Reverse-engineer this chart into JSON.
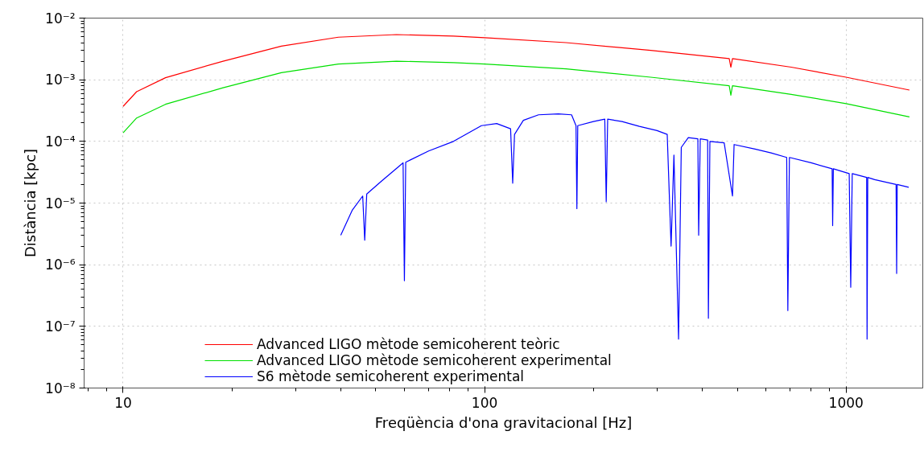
{
  "chart_data": {
    "type": "line",
    "xlabel": "Freqüència d'ona gravitacional [Hz]",
    "ylabel": "Distància [kpc]",
    "log": "xy",
    "grid": true,
    "legend": "bottom",
    "marker": "none",
    "line_style": "solid",
    "xlim": [
      7.8,
      1630
    ],
    "xticks": [
      10,
      100,
      1000
    ],
    "ylim": [
      1e-08,
      0.01
    ],
    "yticks": [
      {
        "value": 1e-08,
        "label": "10⁻⁸"
      },
      {
        "value": 1e-07,
        "label": "10⁻⁷"
      },
      {
        "value": 1e-06,
        "label": "10⁻⁶"
      },
      {
        "value": 1e-05,
        "label": "10⁻⁵"
      },
      {
        "value": 0.0001,
        "label": "10⁻⁴"
      },
      {
        "value": 0.001,
        "label": "10⁻³"
      },
      {
        "value": 0.01,
        "label": "10⁻²"
      }
    ],
    "series": [
      {
        "name": "Advanced LIGO mètode semicoherent teòric",
        "color": "#ff0000",
        "x": [
          10,
          10.9,
          13.1,
          18.9,
          27.4,
          39.4,
          57,
          82,
          100,
          168,
          288,
          475,
          480,
          485,
          705,
          1000,
          1497
        ],
        "values": [
          0.00037,
          0.00064,
          0.00108,
          0.002,
          0.0035,
          0.0049,
          0.0054,
          0.0051,
          0.0048,
          0.004,
          0.003,
          0.0022,
          0.0016,
          0.0022,
          0.0016,
          0.0011,
          0.00068
        ]
      },
      {
        "name": "Advanced LIGO mètode semicoherent experimental",
        "color": "#00e000",
        "x": [
          10,
          10.9,
          13.1,
          18.9,
          27.4,
          39.4,
          57,
          82,
          100,
          168,
          288,
          475,
          480,
          485,
          705,
          1000,
          1497
        ],
        "values": [
          0.000138,
          0.00024,
          0.0004,
          0.00074,
          0.0013,
          0.0018,
          0.002,
          0.0019,
          0.0018,
          0.0015,
          0.0011,
          0.0008,
          0.00056,
          0.0008,
          0.00058,
          0.00041,
          0.00025
        ]
      },
      {
        "name": "S6 mètode semicoherent experimental",
        "color": "#0000ff",
        "x": [
          40,
          43,
          46,
          46.6,
          47.2,
          52,
          59.5,
          60,
          60.5,
          70,
          82,
          98,
          108,
          118,
          119.6,
          121,
          128,
          141,
          160,
          174,
          179,
          180,
          181,
          200,
          215,
          217,
          219,
          240,
          268,
          300,
          320,
          328,
          334,
          344,
          350,
          366,
          389,
          391,
          395,
          414,
          416,
          420,
          460,
          485,
          490,
          560,
          620,
          685,
          690,
          697,
          800,
          915,
          918,
          922,
          1020,
          1030,
          1040,
          1140,
          1143,
          1148,
          1200,
          1375,
          1380,
          1385,
          1490
        ],
        "values": [
          3e-06,
          7.6e-06,
          1.3e-05,
          2.5e-06,
          1.4e-05,
          2.3e-05,
          4.5e-05,
          5.5e-07,
          4.6e-05,
          7e-05,
          0.0001,
          0.00018,
          0.000195,
          0.00016,
          2.1e-05,
          0.00013,
          0.00022,
          0.00027,
          0.00028,
          0.00027,
          0.00018,
          8.1e-06,
          0.00018,
          0.00021,
          0.00023,
          1.05e-05,
          0.00023,
          0.00021,
          0.000175,
          0.00015,
          0.00013,
          2e-06,
          6e-05,
          6.2e-08,
          8e-05,
          0.000115,
          0.00011,
          3e-06,
          0.00011,
          0.000105,
          1.35e-07,
          0.0001,
          9.5e-05,
          1.3e-05,
          8.9e-05,
          7.5e-05,
          6.5e-05,
          5.5e-05,
          1.8e-07,
          5.5e-05,
          4.5e-05,
          3.6e-05,
          4.3e-06,
          3.6e-05,
          3e-05,
          4.3e-07,
          3e-05,
          2.6e-05,
          6.2e-08,
          2.6e-05,
          2.4e-05,
          2e-05,
          7.2e-07,
          2e-05,
          1.8e-05
        ]
      }
    ]
  }
}
